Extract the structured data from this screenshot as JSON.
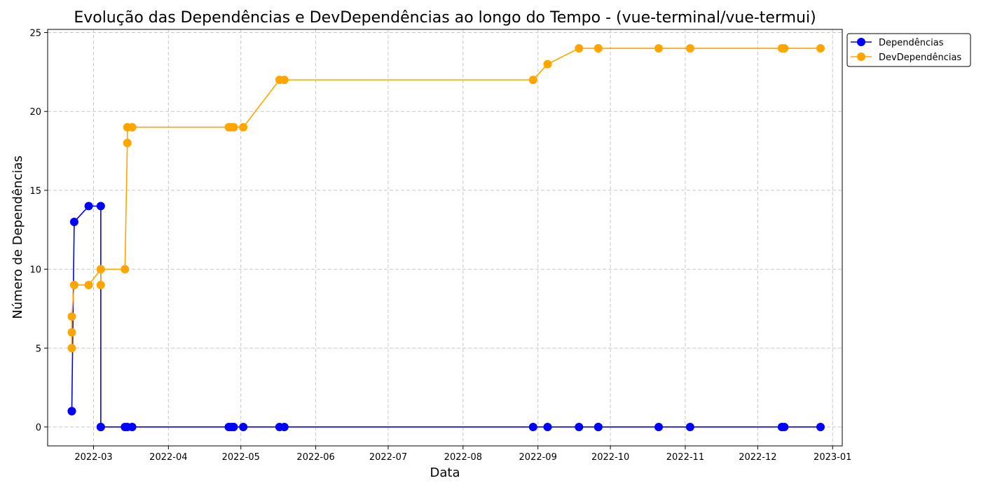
{
  "chart_data": {
    "type": "line",
    "title": "Evolução das Dependências e DevDependências ao longo do Tempo - (vue-terminal/vue-termui)",
    "xlabel": "Data",
    "ylabel": "Número de Dependências",
    "x_ticks": [
      "2022-03",
      "2022-04",
      "2022-05",
      "2022-06",
      "2022-07",
      "2022-08",
      "2022-09",
      "2022-10",
      "2022-11",
      "2022-12",
      "2023-01"
    ],
    "y_ticks": [
      0,
      5,
      10,
      15,
      20,
      25
    ],
    "xlim": [
      "2022-02-10",
      "2023-01-05"
    ],
    "ylim": [
      -1.2,
      25.2
    ],
    "grid": true,
    "legend_position": "outside top-right",
    "series": [
      {
        "name": "Dependências",
        "color": "#0000ff",
        "points": [
          [
            "2022-02-20",
            1
          ],
          [
            "2022-02-20",
            1
          ],
          [
            "2022-02-21",
            13
          ],
          [
            "2022-02-27",
            14
          ],
          [
            "2022-03-04",
            14
          ],
          [
            "2022-03-04",
            0
          ],
          [
            "2022-03-04",
            0
          ],
          [
            "2022-03-14",
            0
          ],
          [
            "2022-03-15",
            0
          ],
          [
            "2022-03-17",
            0
          ],
          [
            "2022-04-26",
            0
          ],
          [
            "2022-04-27",
            0
          ],
          [
            "2022-04-28",
            0
          ],
          [
            "2022-04-28",
            0
          ],
          [
            "2022-05-02",
            0
          ],
          [
            "2022-05-17",
            0
          ],
          [
            "2022-05-19",
            0
          ],
          [
            "2022-08-30",
            0
          ],
          [
            "2022-09-05",
            0
          ],
          [
            "2022-09-18",
            0
          ],
          [
            "2022-09-26",
            0
          ],
          [
            "2022-09-26",
            0
          ],
          [
            "2022-10-21",
            0
          ],
          [
            "2022-11-03",
            0
          ],
          [
            "2022-12-11",
            0
          ],
          [
            "2022-12-12",
            0
          ],
          [
            "2022-12-27",
            0
          ]
        ]
      },
      {
        "name": "DevDependências",
        "color": "#ffa500",
        "points": [
          [
            "2022-02-20",
            5
          ],
          [
            "2022-02-20",
            6
          ],
          [
            "2022-02-20",
            7
          ],
          [
            "2022-02-21",
            9
          ],
          [
            "2022-02-27",
            9
          ],
          [
            "2022-03-04",
            10
          ],
          [
            "2022-03-04",
            9
          ],
          [
            "2022-03-04",
            10
          ],
          [
            "2022-03-14",
            10
          ],
          [
            "2022-03-15",
            18
          ],
          [
            "2022-03-15",
            19
          ],
          [
            "2022-03-17",
            19
          ],
          [
            "2022-04-26",
            19
          ],
          [
            "2022-04-27",
            19
          ],
          [
            "2022-04-28",
            19
          ],
          [
            "2022-04-28",
            19
          ],
          [
            "2022-05-02",
            19
          ],
          [
            "2022-05-17",
            22
          ],
          [
            "2022-05-19",
            22
          ],
          [
            "2022-08-30",
            22
          ],
          [
            "2022-09-05",
            23
          ],
          [
            "2022-09-18",
            24
          ],
          [
            "2022-09-26",
            24
          ],
          [
            "2022-09-26",
            24
          ],
          [
            "2022-10-21",
            24
          ],
          [
            "2022-11-03",
            24
          ],
          [
            "2022-12-11",
            24
          ],
          [
            "2022-12-12",
            24
          ],
          [
            "2022-12-27",
            24
          ]
        ]
      }
    ]
  }
}
